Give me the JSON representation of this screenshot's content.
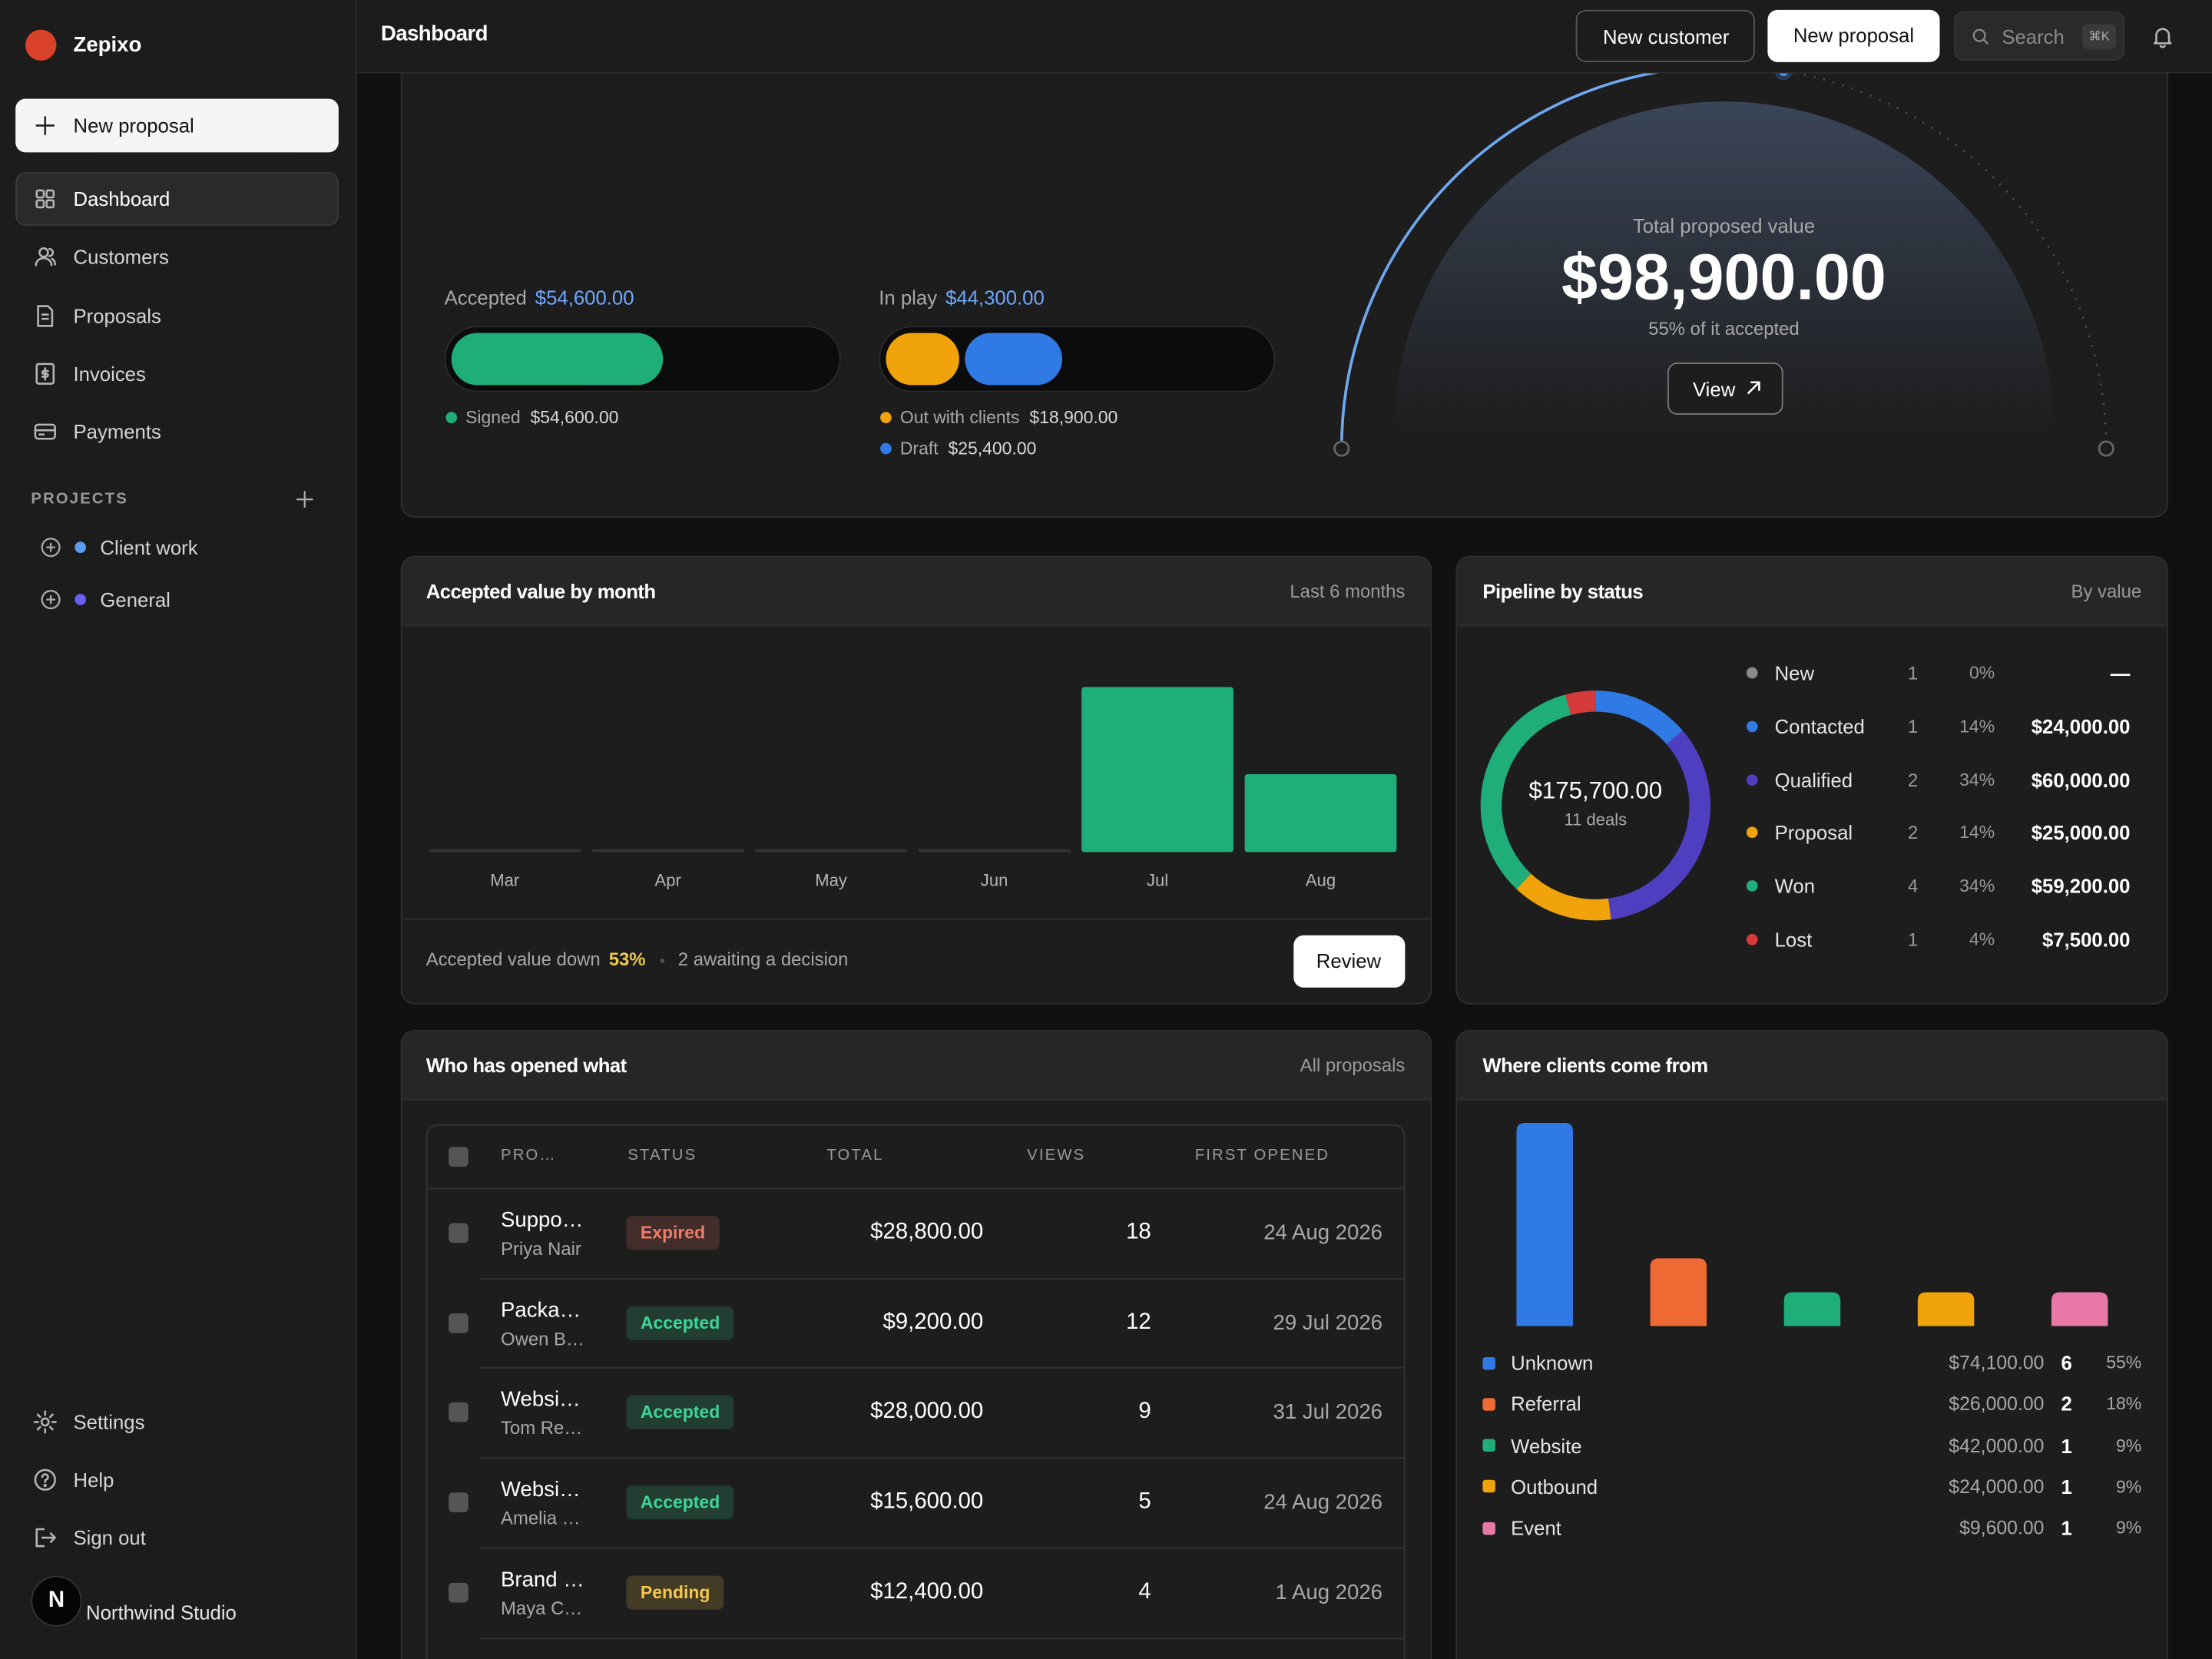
{
  "sidebar": {
    "brand": "Zepixo",
    "new_proposal": "New proposal",
    "nav": [
      "Dashboard",
      "Customers",
      "Proposals",
      "Invoices",
      "Payments"
    ],
    "projects_title": "PROJECTS",
    "projects": [
      {
        "name": "Client work",
        "color": "#5b9cf0"
      },
      {
        "name": "General",
        "color": "#6b5cf2"
      }
    ],
    "footer_nav": [
      "Settings",
      "Help",
      "Sign out"
    ],
    "workspace_initial": "N",
    "workspace": "Northwind Studio"
  },
  "header": {
    "title": "Dashboard",
    "new_customer": "New customer",
    "new_proposal": "New proposal",
    "search": "Search",
    "shortcut": "⌘K"
  },
  "summary": {
    "total": 98900,
    "total_label": "$98,900.00",
    "groups": [
      {
        "label": "Accepted",
        "value_label": "$54,600.00",
        "items": [
          {
            "name": "Signed",
            "value": 54600,
            "value_label": "$54,600.00",
            "color": "#1fae7a"
          }
        ]
      },
      {
        "label": "In play",
        "value_label": "$44,300.00",
        "items": [
          {
            "name": "Out with clients",
            "value": 18900,
            "value_label": "$18,900.00",
            "color": "#f0a30a"
          },
          {
            "name": "Draft",
            "value": 25400,
            "value_label": "$25,400.00",
            "color": "#2f7ae5"
          }
        ]
      }
    ],
    "gauge": {
      "title": "Total proposed value",
      "value": 55,
      "value_label": "55% of it accepted",
      "button": "View",
      "color": "#6fa8f0"
    }
  },
  "monthly": {
    "type": "bar",
    "title": "Accepted value by month",
    "subtitle": "Last 6 months",
    "categories": [
      "Mar",
      "Apr",
      "May",
      "Jun",
      "Jul",
      "Aug"
    ],
    "values": [
      0,
      0,
      0,
      0,
      37100,
      17500
    ],
    "color": "#1fae7a",
    "footer": {
      "text": "Accepted value down",
      "change": "53%",
      "awaiting": "2 awaiting a decision",
      "button": "Review"
    }
  },
  "pipeline": {
    "type": "donut",
    "title": "Pipeline by status",
    "subtitle": "By value",
    "total_label": "$175,700.00",
    "deals": "11 deals",
    "categories": [
      "New",
      "Contacted",
      "Qualified",
      "Proposal",
      "Won",
      "Lost"
    ],
    "colors": [
      "#8a8a8a",
      "#2f7ae5",
      "#4f3fc0",
      "#f0a30a",
      "#1fae7a",
      "#d63b3b"
    ],
    "counts": [
      1,
      1,
      2,
      2,
      4,
      1
    ],
    "shares": [
      "0%",
      "14%",
      "34%",
      "14%",
      "34%",
      "4%"
    ],
    "values": [
      null,
      24000,
      60000,
      25000,
      59200,
      7500
    ],
    "value_labels": [
      "—",
      "$24,000.00",
      "$60,000.00",
      "$25,000.00",
      "$59,200.00",
      "$7,500.00"
    ]
  },
  "table": {
    "title": "Who has opened what",
    "subtitle": "All proposals",
    "columns": [
      "PRO…",
      "STATUS",
      "TOTAL",
      "VIEWS",
      "FIRST OPENED"
    ],
    "rows": [
      {
        "name": "Suppo…",
        "client": "Priya Nair",
        "status": "Expired",
        "status_color": "#f07b6b",
        "total": "$28,800.00",
        "views": 18,
        "first_opened": "24 Aug 2026"
      },
      {
        "name": "Packa…",
        "client": "Owen B…",
        "status": "Accepted",
        "status_color": "#3ed598",
        "total": "$9,200.00",
        "views": 12,
        "first_opened": "29 Jul 2026"
      },
      {
        "name": "Websi…",
        "client": "Tom Re…",
        "status": "Accepted",
        "status_color": "#3ed598",
        "total": "$28,000.00",
        "views": 9,
        "first_opened": "31 Jul 2026"
      },
      {
        "name": "Websi…",
        "client": "Amelia …",
        "status": "Accepted",
        "status_color": "#3ed598",
        "total": "$15,600.00",
        "views": 5,
        "first_opened": "24 Aug 2026"
      },
      {
        "name": "Brand …",
        "client": "Maya C…",
        "status": "Pending",
        "status_color": "#f5c84a",
        "total": "$12,400.00",
        "views": 4,
        "first_opened": "1 Aug 2026"
      }
    ]
  },
  "sources": {
    "type": "bar",
    "title": "Where clients come from",
    "categories": [
      "Unknown",
      "Referral",
      "Website",
      "Outbound",
      "Event"
    ],
    "colors": [
      "#2f7ae5",
      "#ee6a35",
      "#1fae7a",
      "#f0a30a",
      "#e878a6"
    ],
    "values": [
      6,
      2,
      1,
      1,
      1
    ],
    "amounts": [
      "$74,100.00",
      "$26,000.00",
      "$42,000.00",
      "$24,000.00",
      "$9,600.00"
    ],
    "shares": [
      "55%",
      "18%",
      "9%",
      "9%",
      "9%"
    ]
  }
}
